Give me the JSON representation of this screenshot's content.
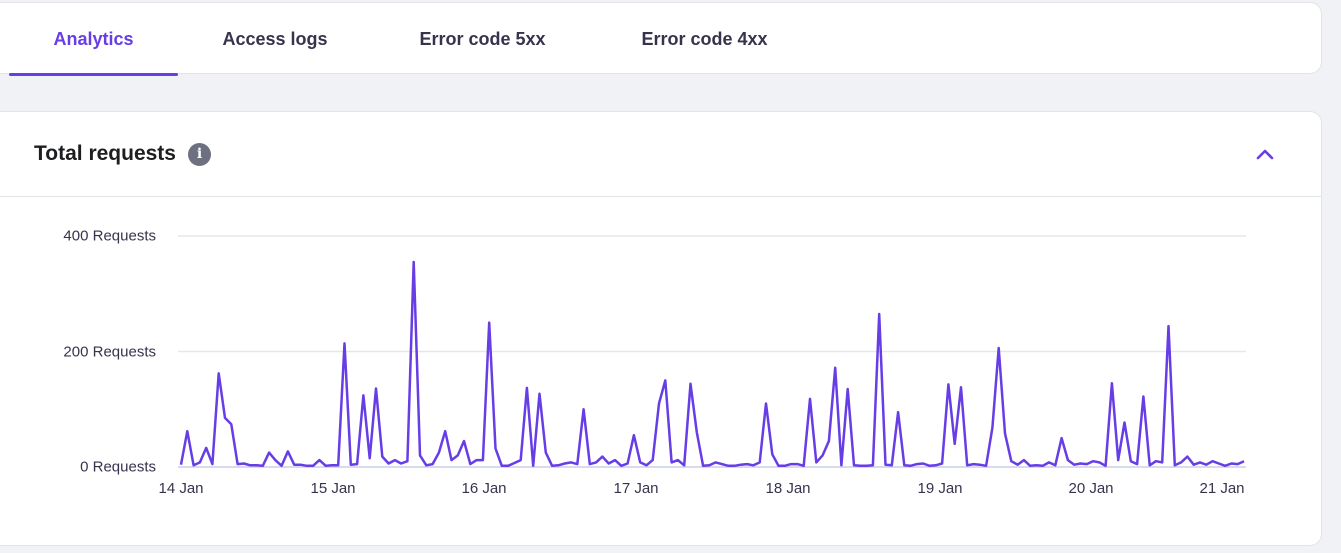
{
  "tabs": [
    {
      "label": "Analytics",
      "active": true
    },
    {
      "label": "Access logs",
      "active": false
    },
    {
      "label": "Error code 5xx",
      "active": false
    },
    {
      "label": "Error code 4xx",
      "active": false
    }
  ],
  "card": {
    "title": "Total requests",
    "info_icon": "info-icon",
    "collapse_icon": "chevron-up-icon"
  },
  "colors": {
    "accent": "#673de6",
    "background": "#f1f2f6",
    "gridline": "#e6e7ec",
    "baseline": "#c9cfe8"
  },
  "chart_data": {
    "type": "line",
    "title": "Total requests",
    "xlabel": "",
    "ylabel": "Requests",
    "ylim": [
      0,
      400
    ],
    "y_ticks": [
      {
        "value": 0,
        "label": "0 Requests"
      },
      {
        "value": 200,
        "label": "200 Requests"
      },
      {
        "value": 400,
        "label": "400 Requests"
      }
    ],
    "x_ticks": [
      "14 Jan",
      "15 Jan",
      "16 Jan",
      "17 Jan",
      "18 Jan",
      "19 Jan",
      "20 Jan",
      "21 Jan"
    ],
    "grid": true,
    "legend": "none",
    "interval": "hourly",
    "series": [
      {
        "name": "Total requests",
        "color": "#673de6",
        "values": [
          4,
          62,
          3,
          8,
          33,
          5,
          162,
          85,
          74,
          5,
          6,
          3,
          3,
          2,
          25,
          12,
          2,
          27,
          4,
          4,
          2,
          2,
          12,
          2,
          3,
          3,
          214,
          4,
          5,
          124,
          15,
          136,
          18,
          6,
          12,
          6,
          10,
          355,
          20,
          3,
          5,
          25,
          62,
          12,
          20,
          45,
          5,
          12,
          12,
          250,
          32,
          2,
          2,
          7,
          12,
          137,
          2,
          127,
          25,
          2,
          3,
          6,
          8,
          5,
          100,
          5,
          8,
          18,
          6,
          12,
          2,
          6,
          55,
          8,
          3,
          12,
          110,
          150,
          8,
          12,
          3,
          144,
          60,
          2,
          3,
          8,
          5,
          2,
          2,
          4,
          5,
          3,
          8,
          110,
          22,
          2,
          2,
          5,
          5,
          2,
          118,
          8,
          20,
          45,
          172,
          3,
          135,
          3,
          2,
          2,
          3,
          265,
          4,
          3,
          95,
          3,
          2,
          5,
          6,
          2,
          3,
          6,
          143,
          40,
          138,
          3,
          5,
          4,
          2,
          68,
          206,
          58,
          10,
          4,
          12,
          2,
          3,
          2,
          8,
          3,
          50,
          12,
          4,
          6,
          5,
          10,
          8,
          2,
          145,
          12,
          77,
          10,
          5,
          122,
          3,
          10,
          8,
          244,
          3,
          8,
          18,
          4,
          8,
          4,
          10,
          6,
          2,
          6,
          5,
          10
        ]
      }
    ]
  }
}
